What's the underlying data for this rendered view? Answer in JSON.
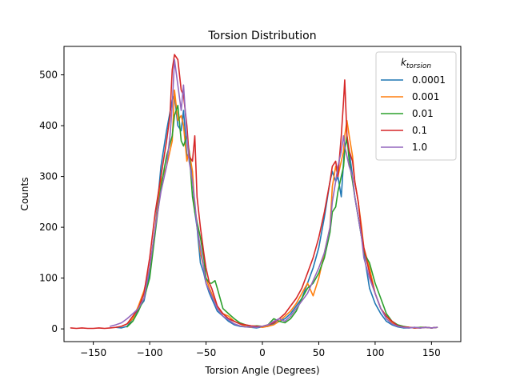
{
  "chart_data": {
    "type": "line",
    "title": "Torsion Distribution",
    "xlabel": "Torsion Angle (Degrees)",
    "ylabel": "Counts",
    "xlim": [
      -176,
      176
    ],
    "ylim": [
      -25,
      556
    ],
    "xticks": [
      -150,
      -100,
      -50,
      0,
      50,
      100,
      150
    ],
    "xtick_labels": [
      "−150",
      "−100",
      "−50",
      "0",
      "50",
      "100",
      "150"
    ],
    "yticks": [
      0,
      100,
      200,
      300,
      400,
      500
    ],
    "ytick_labels": [
      "0",
      "100",
      "200",
      "300",
      "400",
      "500"
    ],
    "grid": false,
    "legend": {
      "placement": "top-right",
      "title_base": "k",
      "title_sub": "torsion",
      "entries": [
        "0.0001",
        "0.001",
        "0.01",
        "0.1",
        "1.0"
      ]
    },
    "series": [
      {
        "name": "0.0001",
        "color": "#1f77b4",
        "x": [
          -130,
          -125,
          -120,
          -115,
          -110,
          -105,
          -100,
          -95,
          -90,
          -85,
          -80,
          -78,
          -75,
          -72,
          -70,
          -67,
          -65,
          -62,
          -60,
          -58,
          -55,
          -52,
          -50,
          -47,
          -45,
          -40,
          -35,
          -30,
          -25,
          -20,
          -15,
          -10,
          -5,
          0,
          5,
          10,
          15,
          20,
          25,
          30,
          35,
          40,
          45,
          50,
          55,
          60,
          62,
          65,
          67,
          70,
          72,
          73,
          75,
          77,
          80,
          82,
          85,
          88,
          90,
          95,
          100,
          105,
          110,
          115,
          120,
          125,
          130,
          135,
          140,
          145,
          150,
          155
        ],
        "y": [
          3,
          2,
          5,
          20,
          40,
          55,
          110,
          200,
          320,
          390,
          450,
          460,
          400,
          390,
          430,
          340,
          345,
          300,
          230,
          200,
          130,
          110,
          90,
          70,
          60,
          35,
          25,
          15,
          8,
          5,
          4,
          3,
          2,
          4,
          5,
          10,
          15,
          20,
          30,
          45,
          60,
          90,
          120,
          160,
          220,
          290,
          310,
          290,
          300,
          260,
          330,
          360,
          370,
          350,
          300,
          260,
          220,
          180,
          150,
          80,
          50,
          30,
          15,
          8,
          4,
          2,
          2,
          3,
          2,
          3,
          2,
          3
        ]
      },
      {
        "name": "0.001",
        "color": "#ff7f0e",
        "x": [
          -125,
          -120,
          -115,
          -110,
          -105,
          -100,
          -95,
          -90,
          -85,
          -80,
          -78,
          -75,
          -72,
          -70,
          -67,
          -65,
          -62,
          -60,
          -58,
          -55,
          -52,
          -50,
          -47,
          -45,
          -40,
          -35,
          -30,
          -25,
          -20,
          -15,
          -10,
          -5,
          0,
          5,
          10,
          15,
          20,
          25,
          30,
          35,
          40,
          45,
          50,
          55,
          60,
          62,
          65,
          67,
          70,
          72,
          73,
          75,
          77,
          80,
          82,
          85,
          88,
          90,
          95,
          100,
          105,
          110,
          115,
          120,
          125,
          130,
          135,
          140,
          145,
          150,
          155
        ],
        "y": [
          5,
          10,
          20,
          45,
          75,
          120,
          200,
          290,
          320,
          370,
          470,
          410,
          420,
          400,
          330,
          350,
          310,
          240,
          210,
          150,
          120,
          100,
          80,
          70,
          40,
          30,
          25,
          15,
          10,
          5,
          3,
          5,
          3,
          5,
          8,
          15,
          25,
          35,
          50,
          70,
          90,
          65,
          100,
          150,
          200,
          280,
          320,
          300,
          330,
          350,
          380,
          410,
          380,
          340,
          290,
          250,
          200,
          160,
          120,
          70,
          40,
          25,
          12,
          6,
          4,
          3,
          2,
          3,
          3,
          2,
          3
        ]
      },
      {
        "name": "0.01",
        "color": "#2ca02c",
        "x": [
          -120,
          -115,
          -110,
          -105,
          -100,
          -95,
          -90,
          -85,
          -80,
          -78,
          -75,
          -72,
          -70,
          -67,
          -65,
          -62,
          -60,
          -58,
          -55,
          -52,
          -50,
          -47,
          -45,
          -42,
          -40,
          -35,
          -30,
          -25,
          -20,
          -15,
          -10,
          -5,
          0,
          5,
          10,
          15,
          20,
          25,
          30,
          35,
          40,
          45,
          50,
          55,
          60,
          62,
          65,
          67,
          70,
          72,
          73,
          75,
          77,
          80,
          82,
          85,
          88,
          90,
          95,
          100,
          105,
          110,
          115,
          120,
          125,
          130,
          135,
          140,
          145,
          150,
          155
        ],
        "y": [
          4,
          15,
          35,
          60,
          100,
          190,
          280,
          340,
          380,
          420,
          440,
          370,
          360,
          380,
          350,
          260,
          230,
          210,
          180,
          140,
          100,
          90,
          90,
          95,
          80,
          40,
          30,
          20,
          12,
          8,
          5,
          6,
          5,
          8,
          20,
          15,
          12,
          20,
          35,
          60,
          80,
          90,
          110,
          140,
          190,
          230,
          240,
          270,
          300,
          320,
          350,
          380,
          330,
          290,
          260,
          220,
          180,
          150,
          130,
          90,
          60,
          30,
          15,
          8,
          5,
          3,
          2,
          3,
          3,
          2,
          3
        ]
      },
      {
        "name": "0.1",
        "color": "#d62728",
        "x": [
          -170,
          -165,
          -160,
          -155,
          -150,
          -145,
          -140,
          -135,
          -130,
          -125,
          -120,
          -115,
          -110,
          -105,
          -100,
          -95,
          -90,
          -85,
          -82,
          -80,
          -78,
          -75,
          -72,
          -70,
          -67,
          -65,
          -62,
          -60,
          -58,
          -55,
          -52,
          -50,
          -47,
          -45,
          -40,
          -35,
          -30,
          -25,
          -20,
          -15,
          -10,
          -5,
          0,
          5,
          10,
          15,
          20,
          25,
          30,
          35,
          40,
          45,
          50,
          55,
          60,
          62,
          65,
          67,
          70,
          72,
          73,
          75,
          77,
          80,
          82,
          85,
          88,
          90,
          95,
          100,
          105,
          110,
          115,
          120,
          125,
          130,
          135,
          140,
          145,
          150,
          155
        ],
        "y": [
          2,
          1,
          2,
          1,
          1,
          2,
          1,
          2,
          3,
          5,
          10,
          25,
          40,
          70,
          140,
          230,
          300,
          370,
          420,
          510,
          540,
          530,
          470,
          460,
          400,
          340,
          330,
          380,
          260,
          200,
          150,
          120,
          90,
          80,
          45,
          30,
          20,
          15,
          10,
          8,
          6,
          5,
          5,
          8,
          12,
          20,
          30,
          45,
          60,
          80,
          110,
          140,
          180,
          230,
          290,
          320,
          330,
          300,
          380,
          450,
          490,
          380,
          350,
          330,
          290,
          250,
          190,
          160,
          110,
          70,
          40,
          25,
          15,
          6,
          4,
          3,
          2,
          2,
          3,
          2,
          3
        ]
      },
      {
        "name": "1.0",
        "color": "#9467bd",
        "x": [
          -135,
          -130,
          -125,
          -120,
          -115,
          -110,
          -105,
          -100,
          -95,
          -90,
          -85,
          -82,
          -80,
          -78,
          -75,
          -72,
          -70,
          -67,
          -65,
          -62,
          -60,
          -58,
          -55,
          -52,
          -50,
          -47,
          -45,
          -40,
          -35,
          -30,
          -25,
          -20,
          -15,
          -10,
          -5,
          0,
          5,
          10,
          15,
          20,
          25,
          30,
          35,
          40,
          45,
          50,
          55,
          60,
          62,
          65,
          67,
          70,
          72,
          73,
          75,
          77,
          80,
          82,
          85,
          88,
          90,
          95,
          100,
          105,
          110,
          115,
          120,
          125,
          130,
          135,
          140,
          145,
          150,
          155
        ],
        "y": [
          5,
          8,
          12,
          20,
          30,
          40,
          60,
          120,
          200,
          270,
          320,
          380,
          440,
          530,
          480,
          430,
          480,
          380,
          330,
          290,
          250,
          200,
          160,
          120,
          90,
          75,
          65,
          40,
          25,
          18,
          10,
          6,
          4,
          4,
          3,
          5,
          8,
          15,
          20,
          15,
          25,
          40,
          55,
          70,
          95,
          120,
          150,
          200,
          250,
          290,
          320,
          350,
          380,
          360,
          340,
          320,
          300,
          260,
          220,
          180,
          140,
          100,
          70,
          40,
          20,
          10,
          5,
          3,
          2,
          3,
          2,
          3,
          2,
          3
        ]
      }
    ]
  }
}
